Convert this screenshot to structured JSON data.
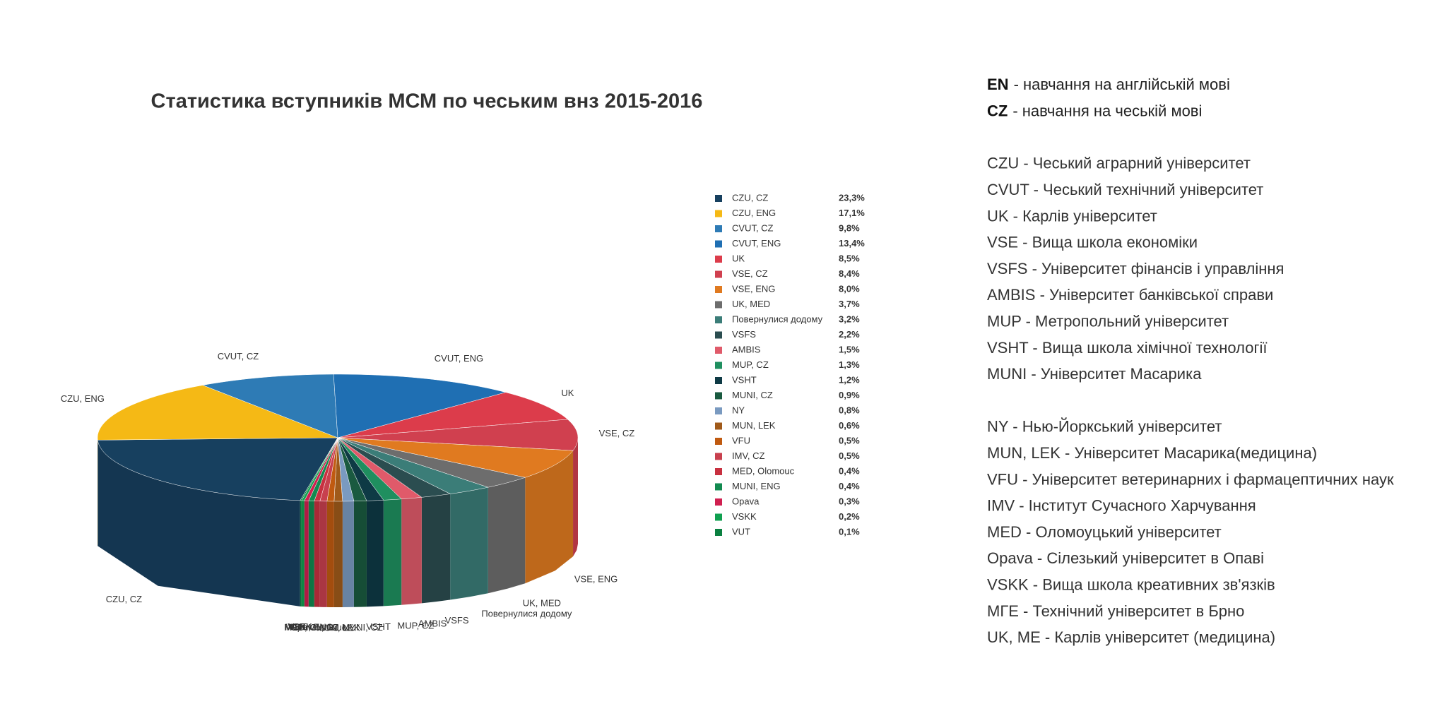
{
  "chart_data": {
    "type": "pie",
    "title": "Статистика вступників МСМ по чеським внз 2015-2016",
    "categories": [
      "CZU, CZ",
      "CZU, ENG",
      "CVUT, CZ",
      "CVUT, ENG",
      "UK",
      "VSE, CZ",
      "VSE, ENG",
      "UK, MED",
      "Повернулися додому",
      "VSFS",
      "AMBIS",
      "MUP, CZ",
      "VSHT",
      "MUNI, CZ",
      "NY",
      "MUN, LEK",
      "VFU",
      "IMV, CZ",
      "MED, Olomouc",
      "MUNI, ENG",
      "Opava",
      "VSKK",
      "VUT"
    ],
    "values": [
      23.3,
      17.1,
      9.8,
      13.4,
      8.5,
      8.4,
      8.0,
      3.7,
      3.2,
      2.2,
      1.5,
      1.3,
      1.2,
      0.9,
      0.8,
      0.6,
      0.5,
      0.5,
      0.4,
      0.4,
      0.3,
      0.2,
      0.1
    ],
    "value_labels": [
      "23,3%",
      "17,1%",
      "9,8%",
      "13,4%",
      "8,5%",
      "8,4%",
      "8,0%",
      "3,7%",
      "3,2%",
      "2,2%",
      "1,5%",
      "1,3%",
      "1,2%",
      "0,9%",
      "0,8%",
      "0,6%",
      "0,5%",
      "0,5%",
      "0,4%",
      "0,4%",
      "0,3%",
      "0,2%",
      "0,1%"
    ],
    "colors": [
      "#17405f",
      "#f5b915",
      "#2e7bb5",
      "#1f6fb3",
      "#dc3c4b",
      "#d0404f",
      "#e07a20",
      "#6d6d6d",
      "#3b7d78",
      "#2b4d50",
      "#e05a6a",
      "#1f8f5f",
      "#0e3a45",
      "#1a5a40",
      "#7a9ac0",
      "#a05a1a",
      "#c05a10",
      "#c8404e",
      "#c83040",
      "#128a50",
      "#d02050",
      "#10a050",
      "#0a8040"
    ]
  },
  "notes": [
    [
      {
        "term": "EN",
        "text": "- навчання на англійській мові"
      },
      {
        "term": "CZ",
        "text": "- навчання на чеській мові"
      }
    ],
    [
      "CZU - Чеський аграрний університет",
      "CVUT - Чеський технічний університет",
      "UK - Карлів університет",
      "VSE - Вища школа економіки",
      "VSFS - Університет фінансів і управління",
      "AMBIS - Університет  банківської справи",
      "MUP - Метропольний університет",
      "VSHT - Вища школа хімічної технології",
      "MUNI - Університет Масарика"
    ],
    [
      "NY - Нью-Йоркський університет",
      "MUN, LEK - Університет Масарика(медицина)",
      "VFU - Університет ветеринарних і фармацептичних наук",
      "IMV - Інститут Сучасного Харчування",
      "MED - Оломоуцький університет",
      "Opava - Сілезький університет в Опаві",
      "VSKK - Вища школа креативних зв'язків",
      "МГЕ - Технічний університет в Брно",
      "UK, ME - Карлів університет (медицина)"
    ]
  ]
}
